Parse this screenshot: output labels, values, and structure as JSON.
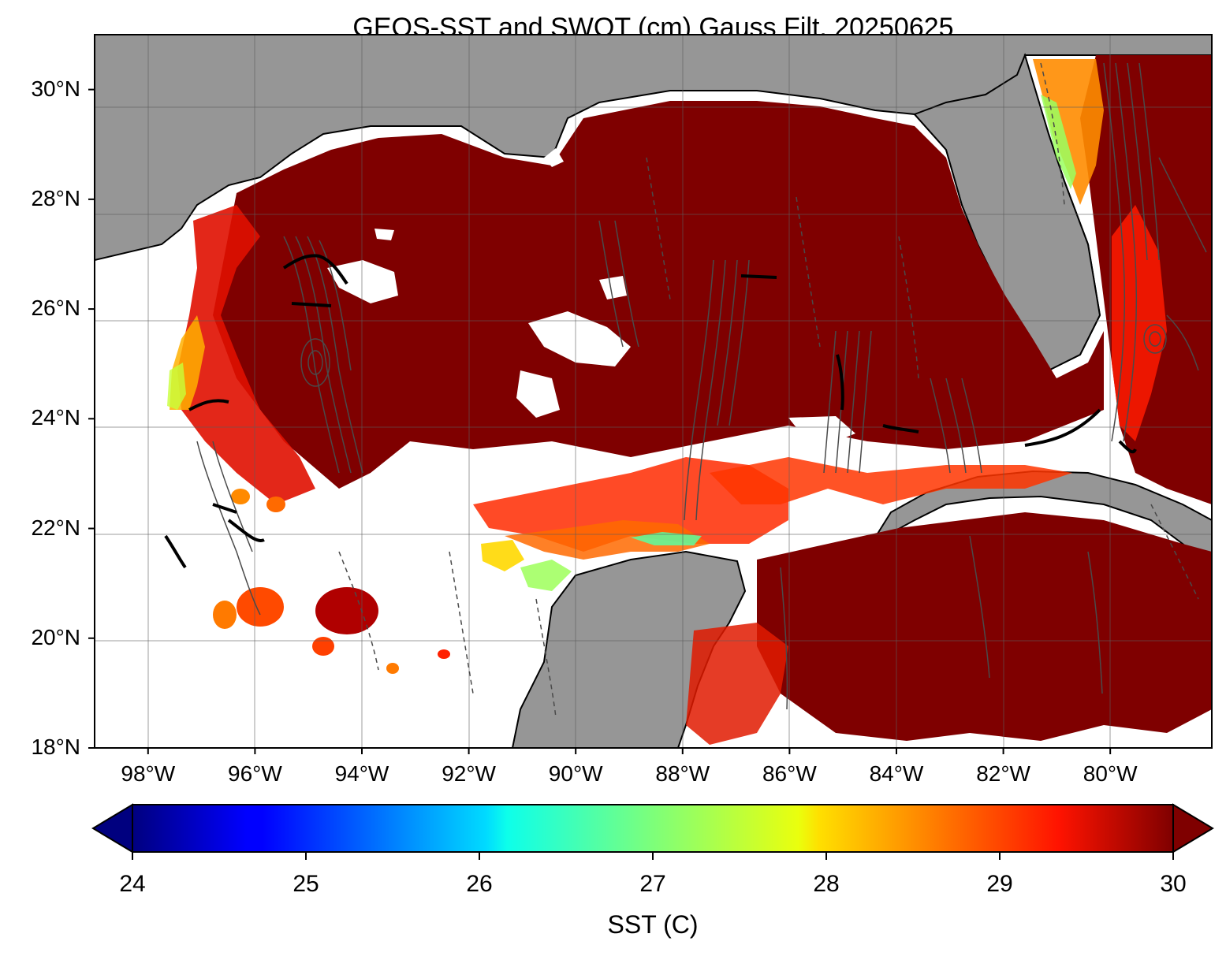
{
  "title": "GEOS-SST  and SWOT (cm) Gauss Filt. 20250625",
  "map": {
    "region": "Gulf of Mexico",
    "lat_range": [
      18,
      31
    ],
    "lon_range": [
      -99,
      -78.1
    ],
    "lat_ticks": [
      {
        "value": 18,
        "label": "18°N"
      },
      {
        "value": 20,
        "label": "20°N"
      },
      {
        "value": 22,
        "label": "22°N"
      },
      {
        "value": 24,
        "label": "24°N"
      },
      {
        "value": 26,
        "label": "26°N"
      },
      {
        "value": 28,
        "label": "28°N"
      },
      {
        "value": 30,
        "label": "30°N"
      }
    ],
    "lon_ticks": [
      {
        "value": -98,
        "label": "98°W"
      },
      {
        "value": -96,
        "label": "96°W"
      },
      {
        "value": -94,
        "label": "94°W"
      },
      {
        "value": -92,
        "label": "92°W"
      },
      {
        "value": -90,
        "label": "90°W"
      },
      {
        "value": -88,
        "label": "88°W"
      },
      {
        "value": -86,
        "label": "86°W"
      },
      {
        "value": -84,
        "label": "84°W"
      },
      {
        "value": -82,
        "label": "82°W"
      },
      {
        "value": -80,
        "label": "80°W"
      }
    ],
    "land_color": "#969696",
    "missing_data_color": "#ffffff",
    "contour_color": "#4a4a4a",
    "gridlines": true
  },
  "colorbar": {
    "label": "SST (C)",
    "min": 24,
    "max": 30,
    "extend": "both",
    "colormap": "jet",
    "ticks": [
      {
        "value": 24,
        "label": "24"
      },
      {
        "value": 25,
        "label": "25"
      },
      {
        "value": 26,
        "label": "26"
      },
      {
        "value": 27,
        "label": "27"
      },
      {
        "value": 28,
        "label": "28"
      },
      {
        "value": 29,
        "label": "29"
      },
      {
        "value": 30,
        "label": "30"
      }
    ]
  }
}
